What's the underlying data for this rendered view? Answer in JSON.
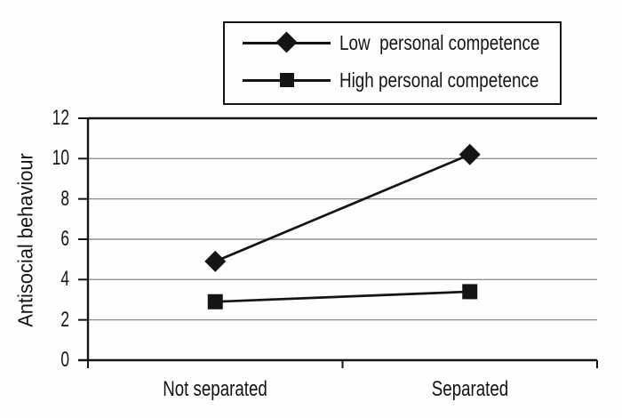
{
  "chart_data": {
    "type": "line",
    "title": "",
    "categories": [
      "Not separated",
      "Separated"
    ],
    "series": [
      {
        "name": "Low  personal competence",
        "marker": "diamond",
        "values": [
          4.9,
          10.2
        ]
      },
      {
        "name": "High personal competence",
        "marker": "square",
        "values": [
          2.9,
          3.4
        ]
      }
    ],
    "xlabel": "",
    "ylabel": "Antisocial behaviour",
    "ylim": [
      0,
      12
    ],
    "yticks": [
      0,
      2,
      4,
      6,
      8,
      10,
      12
    ],
    "grid": "horizontal-gridlines-at-interior-yticks",
    "legend_position": "top-center-boxed",
    "line_color": "#141414",
    "grid_color": "#7d7d7d",
    "background_color": "#fefefe"
  }
}
